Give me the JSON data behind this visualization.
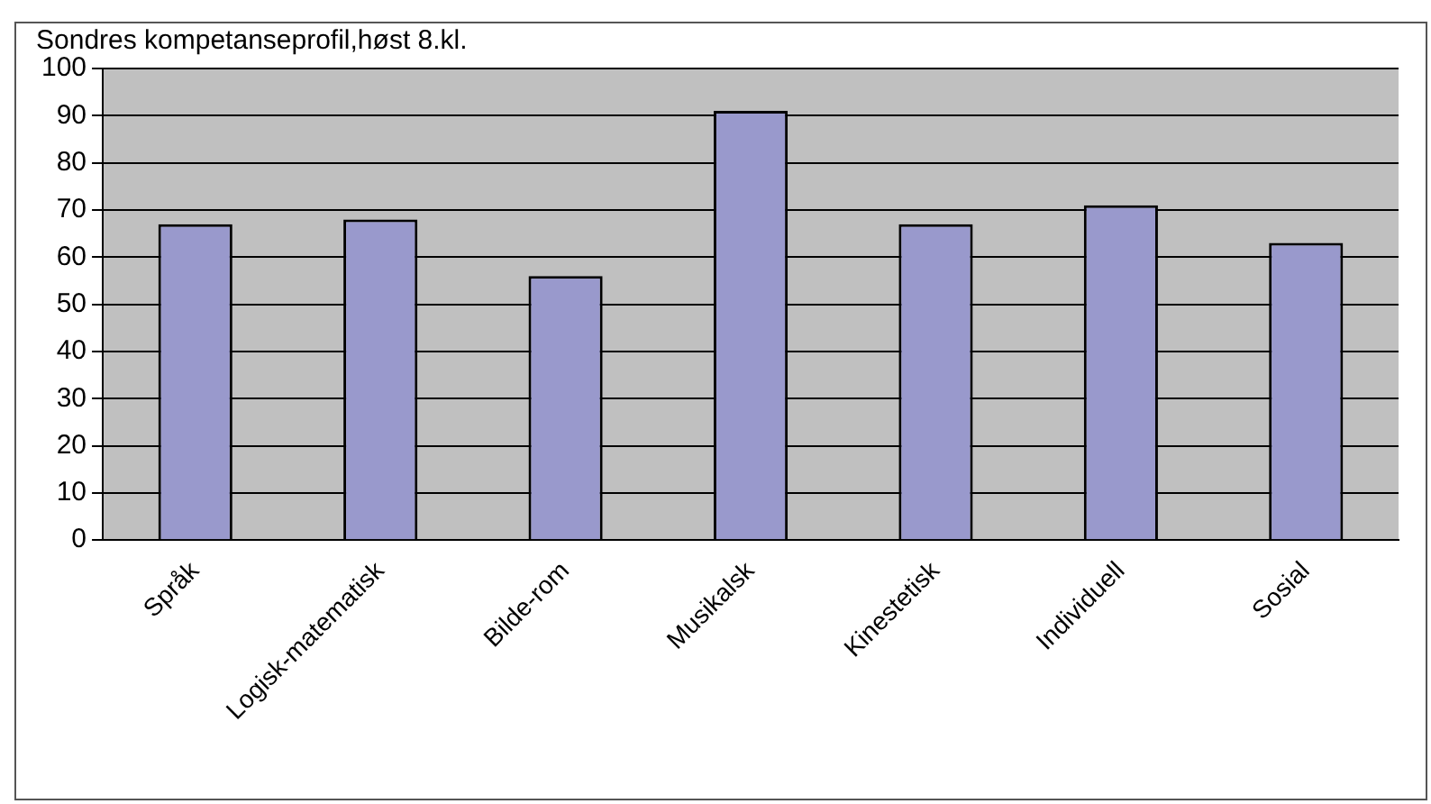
{
  "chart_data": {
    "type": "bar",
    "title": "Sondres kompetanseprofil,høst 8.kl.",
    "categories": [
      "Språk",
      "Logisk-matematisk",
      "Bilde-rom",
      "Musikalsk",
      "Kinestetisk",
      "Individuell",
      "Sosial"
    ],
    "values": [
      67,
      68,
      56,
      91,
      67,
      71,
      63
    ],
    "color": "#9999cc",
    "ylim": [
      0,
      100
    ],
    "yticks": [
      0,
      10,
      20,
      30,
      40,
      50,
      60,
      70,
      80,
      90,
      100
    ],
    "grid": "y",
    "legend": false
  }
}
